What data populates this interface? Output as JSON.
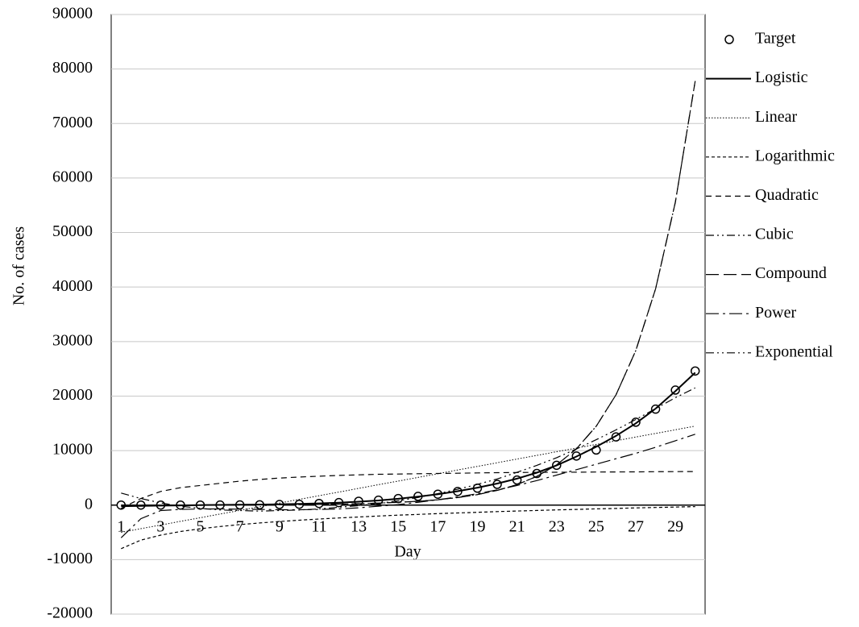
{
  "chart_data": {
    "type": "line",
    "xlabel": "Day",
    "ylabel": "No. of cases",
    "categories": [
      "1",
      null,
      "3",
      null,
      "5",
      null,
      "7",
      null,
      "9",
      null,
      "11",
      null,
      "13",
      null,
      "15",
      null,
      "17",
      null,
      "19",
      null,
      "21",
      null,
      "23",
      null,
      "25",
      null,
      "27",
      null,
      "29",
      null
    ],
    "ylim": [
      -20000,
      90000
    ],
    "yticks": [
      -20000,
      -10000,
      0,
      10000,
      20000,
      30000,
      40000,
      50000,
      60000,
      70000,
      80000,
      90000
    ],
    "grid": true,
    "legend": "right",
    "series": [
      {
        "name": "Target",
        "color": "#000000",
        "marker": "circle",
        "values": [
          0,
          0,
          0,
          0,
          0,
          10,
          30,
          60,
          100,
          150,
          300,
          450,
          700,
          900,
          1200,
          1600,
          2000,
          2500,
          3100,
          3800,
          4600,
          5800,
          7300,
          9000,
          10100,
          12500,
          15200,
          17600,
          21100,
          24600
        ]
      },
      {
        "name": "Logistic",
        "color": "#000000",
        "values": [
          -200,
          -150,
          -100,
          -50,
          0,
          30,
          60,
          100,
          150,
          220,
          320,
          450,
          620,
          850,
          1150,
          1550,
          2000,
          2550,
          3200,
          3950,
          4850,
          5950,
          7300,
          8900,
          10700,
          12700,
          15000,
          17700,
          20900,
          24300
        ]
      },
      {
        "name": "Linear",
        "color": "#000000",
        "values": [
          -5000,
          -4330,
          -3660,
          -2980,
          -2310,
          -1640,
          -970,
          -300,
          380,
          1050,
          1720,
          2390,
          3060,
          3740,
          4410,
          5080,
          5750,
          6430,
          7100,
          7770,
          8440,
          9110,
          9790,
          10460,
          11130,
          11800,
          12480,
          13150,
          13820,
          14500
        ]
      },
      {
        "name": "Logarithmic",
        "color": "#000000",
        "values": [
          -8000,
          -6430,
          -5510,
          -4850,
          -4350,
          -3930,
          -3580,
          -3280,
          -3010,
          -2770,
          -2560,
          -2360,
          -2180,
          -2010,
          -1850,
          -1710,
          -1570,
          -1440,
          -1320,
          -1200,
          -1090,
          -980,
          -880,
          -790,
          -690,
          -610,
          -520,
          -440,
          -360,
          -280
        ]
      },
      {
        "name": "Quadratic",
        "color": "#000000",
        "values": [
          -600,
          1200,
          2500,
          3200,
          3600,
          4000,
          4400,
          4700,
          4950,
          5150,
          5300,
          5450,
          5550,
          5650,
          5700,
          5750,
          5800,
          5850,
          5900,
          5950,
          5980,
          6000,
          6020,
          6040,
          6060,
          6080,
          6100,
          6120,
          6140,
          6160
        ]
      },
      {
        "name": "Cubic",
        "color": "#000000",
        "values": [
          2200,
          1200,
          400,
          -200,
          -600,
          -900,
          -1000,
          -1100,
          -1000,
          -900,
          -700,
          -400,
          -100,
          300,
          800,
          1400,
          2100,
          2900,
          3800,
          4800,
          6000,
          7300,
          8700,
          10300,
          12000,
          13800,
          15700,
          17700,
          19700,
          21500
        ]
      },
      {
        "name": "Compound",
        "color": "#000000",
        "values": [
          5,
          6,
          9,
          12,
          17,
          24,
          34,
          47,
          66,
          93,
          130,
          182,
          255,
          357,
          500,
          700,
          980,
          1372,
          1921,
          2689,
          3765,
          5271,
          7379,
          10331,
          14463,
          20249,
          28348,
          39688,
          55563,
          77788
        ]
      },
      {
        "name": "Power",
        "color": "#000000",
        "values": [
          -6000,
          -2500,
          -1000,
          -800,
          -700,
          -700,
          -750,
          -800,
          -850,
          -850,
          -800,
          -700,
          -500,
          -200,
          100,
          500,
          1000,
          1500,
          2100,
          2800,
          3600,
          4500,
          5500,
          6500,
          7500,
          8500,
          9500,
          10600,
          11800,
          13000
        ]
      },
      {
        "name": "Exponential",
        "color": "#000000",
        "values": [
          5,
          6,
          9,
          12,
          17,
          24,
          34,
          47,
          66,
          93,
          130,
          182,
          255,
          357,
          500,
          700,
          980,
          1372,
          1921,
          2689,
          3765,
          5271,
          7379,
          10331,
          14463,
          20249,
          28348,
          39688,
          55563,
          77788
        ]
      }
    ]
  }
}
